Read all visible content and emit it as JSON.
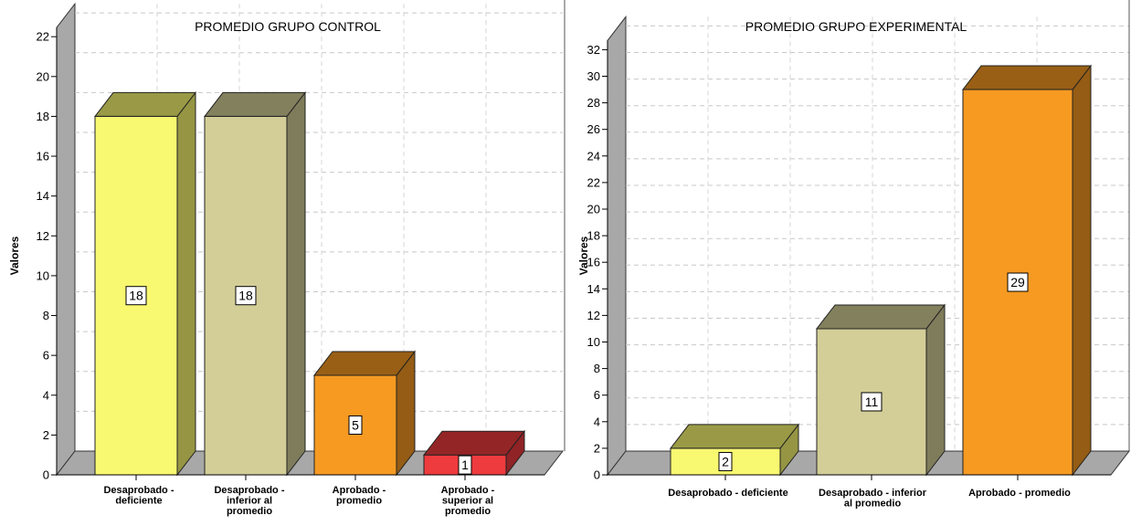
{
  "chart_data": [
    {
      "type": "bar",
      "title": "PROMEDIO GRUPO CONTROL",
      "xlabel": "",
      "ylabel": "Valores",
      "ylim": [
        0,
        22
      ],
      "y_ticks": [
        0,
        2,
        4,
        6,
        8,
        10,
        12,
        14,
        16,
        18,
        20,
        22
      ],
      "grid": true,
      "categories": [
        [
          "Desaprobado -",
          "deficiente"
        ],
        [
          "Desaprobado -",
          "inferior al",
          "promedio"
        ],
        [
          "Aprobado -",
          "promedio"
        ],
        [
          "Aprobado -",
          "superior al",
          "promedio"
        ]
      ],
      "values": [
        18,
        18,
        5,
        1
      ],
      "colors": [
        "#f9f871",
        "#d3ce98",
        "#f69a22",
        "#ee3b3e"
      ]
    },
    {
      "type": "bar",
      "title": "PROMEDIO GRUPO EXPERIMENTAL",
      "xlabel": "",
      "ylabel": "Valores",
      "ylim": [
        0,
        32
      ],
      "y_ticks": [
        0,
        2,
        4,
        6,
        8,
        10,
        12,
        14,
        16,
        18,
        20,
        22,
        24,
        26,
        28,
        30,
        32
      ],
      "grid": true,
      "categories": [
        [
          "Desaprobado - deficiente"
        ],
        [
          "Desaprobado -  inferior",
          "al promedio"
        ],
        [
          "Aprobado - promedio"
        ]
      ],
      "values": [
        2,
        11,
        29
      ],
      "colors": [
        "#f9f871",
        "#d3ce98",
        "#f69a22"
      ]
    }
  ]
}
